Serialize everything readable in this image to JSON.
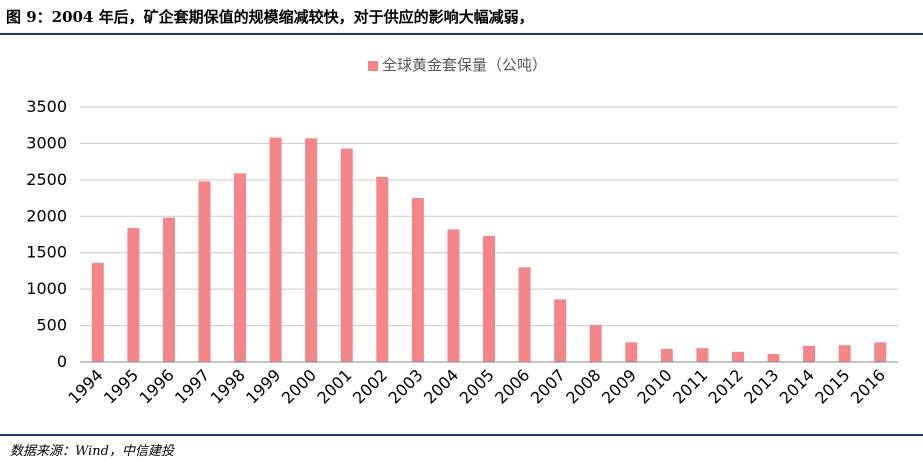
{
  "figure": {
    "title": "图 9：2004 年后，矿企套期保值的规模缩减较快，对于供应的影响大幅减弱，",
    "source": "数据来源：Wind，中信建投"
  },
  "colors": {
    "bar": "#f4868a",
    "grid": "#c8c8c8",
    "axis": "#888888",
    "text": "#000000",
    "legend_text": "#595959",
    "rule": "#1d3a6e"
  },
  "chart_data": {
    "type": "bar",
    "title": "",
    "xlabel": "",
    "ylabel": "",
    "ylim": [
      0,
      3500
    ],
    "yticks": [
      0,
      500,
      1000,
      1500,
      2000,
      2500,
      3000,
      3500
    ],
    "grid": true,
    "legend_position": "top-center",
    "categories": [
      "1994",
      "1995",
      "1996",
      "1997",
      "1998",
      "1999",
      "2000",
      "2001",
      "2002",
      "2003",
      "2004",
      "2005",
      "2006",
      "2007",
      "2008",
      "2009",
      "2010",
      "2011",
      "2012",
      "2013",
      "2014",
      "2015",
      "2016"
    ],
    "series": [
      {
        "name": "全球黄金套保量（公吨）",
        "values": [
          1360,
          1840,
          1980,
          2480,
          2590,
          3080,
          3070,
          2930,
          2540,
          2250,
          1820,
          1730,
          1300,
          860,
          510,
          270,
          180,
          190,
          140,
          110,
          220,
          230,
          270
        ]
      }
    ]
  }
}
